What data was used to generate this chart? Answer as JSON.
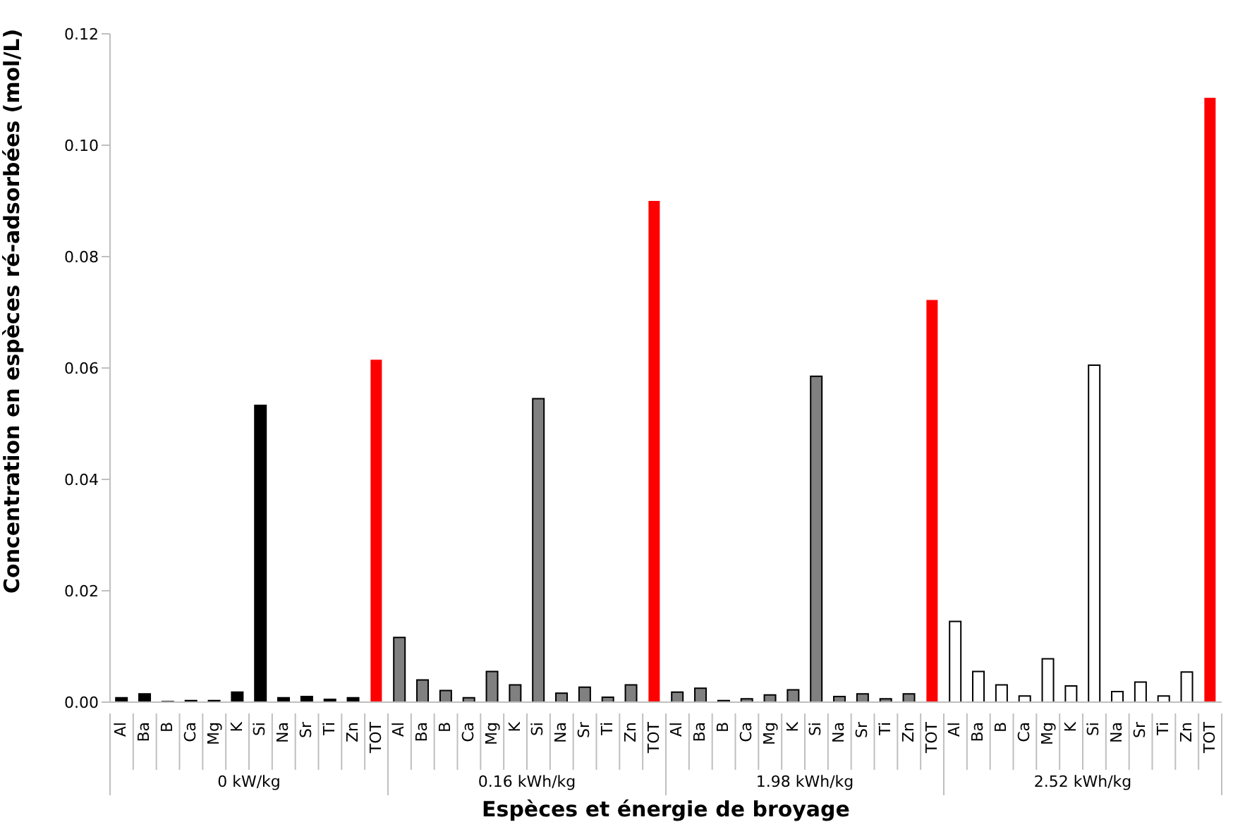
{
  "chart_data": {
    "type": "bar",
    "xlabel": "Espèces et énergie de broyage",
    "ylabel": "Concentration en espèces ré-adsorbées (mol/L)",
    "categories": [
      "Al",
      "Ba",
      "B",
      "Ca",
      "Mg",
      "K",
      "Si",
      "Na",
      "Sr",
      "Ti",
      "Zn",
      "TOT",
      "Al",
      "Ba",
      "B",
      "Ca",
      "Mg",
      "K",
      "Si",
      "Na",
      "Sr",
      "Ti",
      "Zn",
      "TOT",
      "Al",
      "Ba",
      "B",
      "Ca",
      "Mg",
      "K",
      "Si",
      "Na",
      "Sr",
      "Ti",
      "Zn",
      "TOT",
      "Al",
      "Ba",
      "B",
      "Ca",
      "Mg",
      "K",
      "Si",
      "Na",
      "Sr",
      "Ti",
      "Zn",
      "TOT"
    ],
    "values": [
      0.0008,
      0.0015,
      0.0001,
      0.0003,
      0.0003,
      0.0018,
      0.0533,
      0.0008,
      0.001,
      0.0005,
      0.0008,
      0.0615,
      0.0116,
      0.004,
      0.0021,
      0.0008,
      0.0055,
      0.0031,
      0.0545,
      0.0016,
      0.0027,
      0.0009,
      0.0031,
      0.09,
      0.0018,
      0.0025,
      0.0003,
      0.0006,
      0.0013,
      0.0022,
      0.0585,
      0.001,
      0.0015,
      0.0006,
      0.0015,
      0.0722,
      0.0145,
      0.0055,
      0.0031,
      0.0011,
      0.0078,
      0.0029,
      0.0605,
      0.0019,
      0.0036,
      0.0011,
      0.0054,
      0.1085
    ],
    "colors": [
      "#000000",
      "#000000",
      "#000000",
      "#000000",
      "#000000",
      "#000000",
      "#000000",
      "#000000",
      "#000000",
      "#000000",
      "#000000",
      "#ff0000",
      "#808080",
      "#808080",
      "#808080",
      "#808080",
      "#808080",
      "#808080",
      "#808080",
      "#808080",
      "#808080",
      "#808080",
      "#808080",
      "#ff0000",
      "#808080",
      "#808080",
      "#808080",
      "#808080",
      "#808080",
      "#808080",
      "#808080",
      "#808080",
      "#808080",
      "#808080",
      "#808080",
      "#ff0000",
      "#ffffff",
      "#ffffff",
      "#ffffff",
      "#ffffff",
      "#ffffff",
      "#ffffff",
      "#ffffff",
      "#ffffff",
      "#ffffff",
      "#ffffff",
      "#ffffff",
      "#ff0000"
    ],
    "ylim": [
      0,
      0.12
    ],
    "yticks": [
      {
        "value": 0,
        "label": "0.00"
      },
      {
        "value": 0.02,
        "label": "0.02"
      },
      {
        "value": 0.04,
        "label": "0.04"
      },
      {
        "value": 0.06,
        "label": "0.06"
      },
      {
        "value": 0.08,
        "label": "0.08"
      },
      {
        "value": 0.1,
        "label": "0.10"
      },
      {
        "value": 0.12,
        "label": "0.12"
      }
    ],
    "annotations": [
      "0 kW/kg",
      "0.16 kWh/kg",
      "1.98 kWh/kg",
      "2.52 kWh/kg"
    ],
    "grid": false,
    "legend": false
  }
}
